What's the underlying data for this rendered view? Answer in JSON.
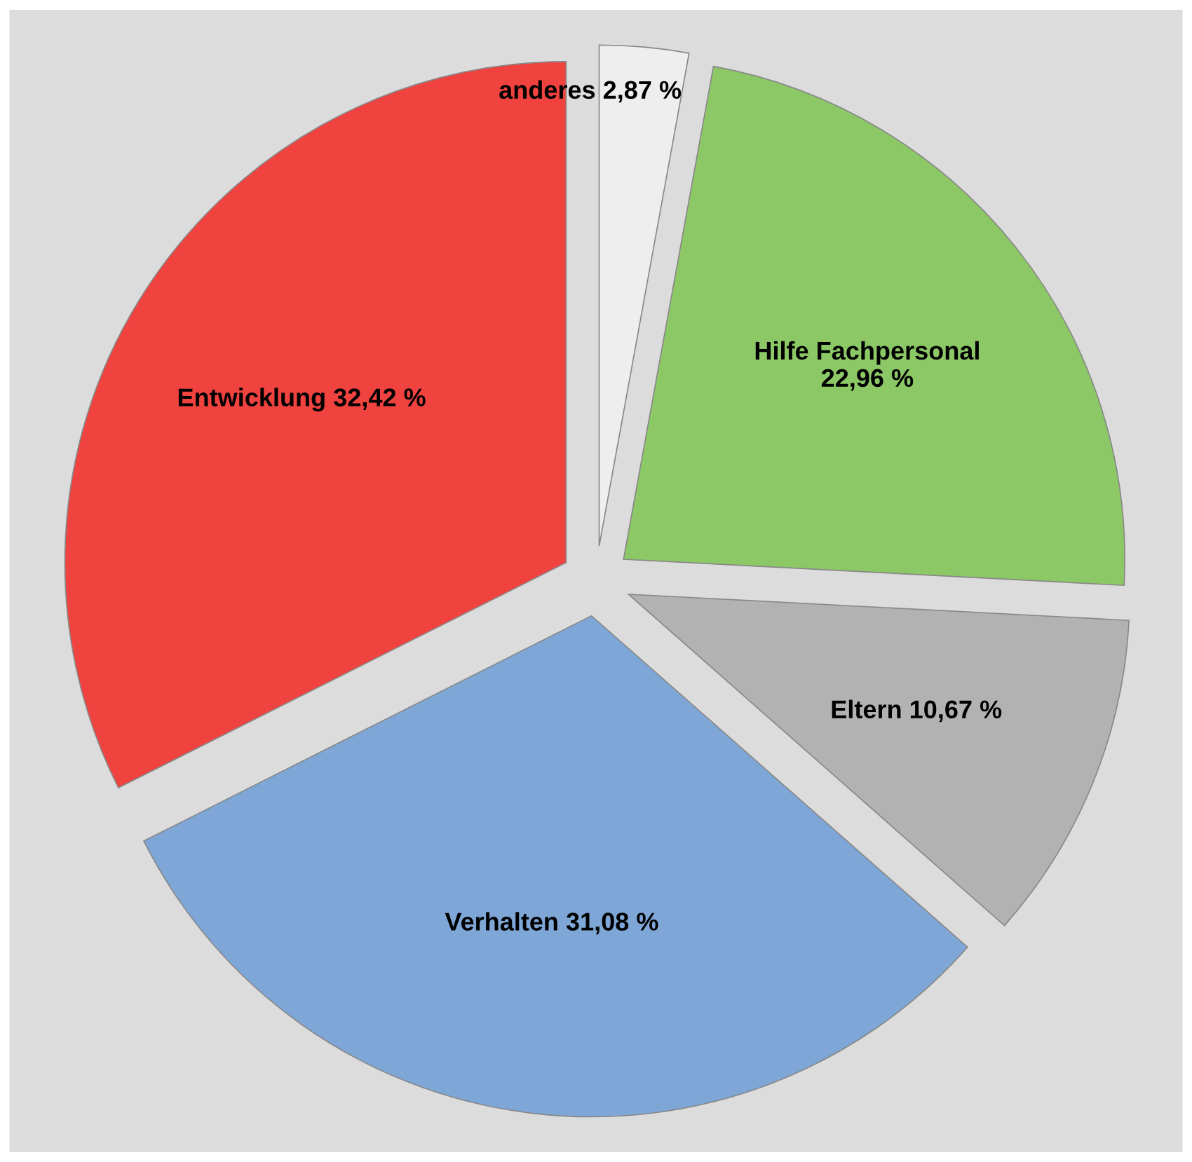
{
  "chart_data": {
    "type": "pie",
    "categories": [
      "anderes",
      "Hilfe Fachpersonal",
      "Eltern",
      "Verhalten",
      "Entwicklung"
    ],
    "values": [
      2.87,
      22.96,
      10.67,
      31.08,
      32.42
    ],
    "value_labels": [
      "2,87 %",
      "22,96 %",
      "10,67 %",
      "31,08 %",
      "32,42 %"
    ],
    "colors": [
      "#eeeeee",
      "#8cc866",
      "#b2b2b2",
      "#7ea7d8",
      "#f0433f"
    ],
    "legend": false
  }
}
